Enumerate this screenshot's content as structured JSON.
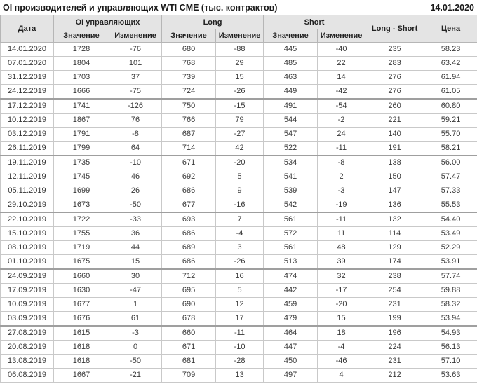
{
  "title": "OI производителей и управляющих WTI CME (тыс. контрактов)",
  "report_date": "14.01.2020",
  "colors": {
    "positive_change": "#0a9a0a",
    "negative_change": "#cc2222",
    "header_bg": "#e4e4e4",
    "grid_line": "#c9c9c9",
    "group_separator": "#9f9f9f"
  },
  "table": {
    "columns": {
      "date": "Дата",
      "groups": [
        {
          "label": "OI управляющих",
          "sub": [
            "Значение",
            "Изменение"
          ]
        },
        {
          "label": "Long",
          "sub": [
            "Значение",
            "Изменение"
          ]
        },
        {
          "label": "Short",
          "sub": [
            "Значение",
            "Изменение"
          ]
        }
      ],
      "long_short": "Long - Short",
      "price": "Цена"
    },
    "group_separator_after_rows": [
      3,
      7,
      11,
      15,
      19
    ],
    "rows": [
      {
        "date": "14.01.2020",
        "oi_value": "1728",
        "oi_change": "-76",
        "long_value": "680",
        "long_change": "-88",
        "short_value": "445",
        "short_change": "-40",
        "long_short": "235",
        "price": "58.23"
      },
      {
        "date": "07.01.2020",
        "oi_value": "1804",
        "oi_change": "101",
        "long_value": "768",
        "long_change": "29",
        "short_value": "485",
        "short_change": "22",
        "long_short": "283",
        "price": "63.42"
      },
      {
        "date": "31.12.2019",
        "oi_value": "1703",
        "oi_change": "37",
        "long_value": "739",
        "long_change": "15",
        "short_value": "463",
        "short_change": "14",
        "long_short": "276",
        "price": "61.94"
      },
      {
        "date": "24.12.2019",
        "oi_value": "1666",
        "oi_change": "-75",
        "long_value": "724",
        "long_change": "-26",
        "short_value": "449",
        "short_change": "-42",
        "long_short": "276",
        "price": "61.05"
      },
      {
        "date": "17.12.2019",
        "oi_value": "1741",
        "oi_change": "-126",
        "long_value": "750",
        "long_change": "-15",
        "short_value": "491",
        "short_change": "-54",
        "long_short": "260",
        "price": "60.80"
      },
      {
        "date": "10.12.2019",
        "oi_value": "1867",
        "oi_change": "76",
        "long_value": "766",
        "long_change": "79",
        "short_value": "544",
        "short_change": "-2",
        "long_short": "221",
        "price": "59.21"
      },
      {
        "date": "03.12.2019",
        "oi_value": "1791",
        "oi_change": "-8",
        "long_value": "687",
        "long_change": "-27",
        "short_value": "547",
        "short_change": "24",
        "long_short": "140",
        "price": "55.70"
      },
      {
        "date": "26.11.2019",
        "oi_value": "1799",
        "oi_change": "64",
        "long_value": "714",
        "long_change": "42",
        "short_value": "522",
        "short_change": "-11",
        "long_short": "191",
        "price": "58.21"
      },
      {
        "date": "19.11.2019",
        "oi_value": "1735",
        "oi_change": "-10",
        "long_value": "671",
        "long_change": "-20",
        "short_value": "534",
        "short_change": "-8",
        "long_short": "138",
        "price": "56.00"
      },
      {
        "date": "12.11.2019",
        "oi_value": "1745",
        "oi_change": "46",
        "long_value": "692",
        "long_change": "5",
        "short_value": "541",
        "short_change": "2",
        "long_short": "150",
        "price": "57.47"
      },
      {
        "date": "05.11.2019",
        "oi_value": "1699",
        "oi_change": "26",
        "long_value": "686",
        "long_change": "9",
        "short_value": "539",
        "short_change": "-3",
        "long_short": "147",
        "price": "57.33"
      },
      {
        "date": "29.10.2019",
        "oi_value": "1673",
        "oi_change": "-50",
        "long_value": "677",
        "long_change": "-16",
        "short_value": "542",
        "short_change": "-19",
        "long_short": "136",
        "price": "55.53"
      },
      {
        "date": "22.10.2019",
        "oi_value": "1722",
        "oi_change": "-33",
        "long_value": "693",
        "long_change": "7",
        "short_value": "561",
        "short_change": "-11",
        "long_short": "132",
        "price": "54.40"
      },
      {
        "date": "15.10.2019",
        "oi_value": "1755",
        "oi_change": "36",
        "long_value": "686",
        "long_change": "-4",
        "short_value": "572",
        "short_change": "11",
        "long_short": "114",
        "price": "53.49"
      },
      {
        "date": "08.10.2019",
        "oi_value": "1719",
        "oi_change": "44",
        "long_value": "689",
        "long_change": "3",
        "short_value": "561",
        "short_change": "48",
        "long_short": "129",
        "price": "52.29"
      },
      {
        "date": "01.10.2019",
        "oi_value": "1675",
        "oi_change": "15",
        "long_value": "686",
        "long_change": "-26",
        "short_value": "513",
        "short_change": "39",
        "long_short": "174",
        "price": "53.91"
      },
      {
        "date": "24.09.2019",
        "oi_value": "1660",
        "oi_change": "30",
        "long_value": "712",
        "long_change": "16",
        "short_value": "474",
        "short_change": "32",
        "long_short": "238",
        "price": "57.74"
      },
      {
        "date": "17.09.2019",
        "oi_value": "1630",
        "oi_change": "-47",
        "long_value": "695",
        "long_change": "5",
        "short_value": "442",
        "short_change": "-17",
        "long_short": "254",
        "price": "59.88"
      },
      {
        "date": "10.09.2019",
        "oi_value": "1677",
        "oi_change": "1",
        "long_value": "690",
        "long_change": "12",
        "short_value": "459",
        "short_change": "-20",
        "long_short": "231",
        "price": "58.32"
      },
      {
        "date": "03.09.2019",
        "oi_value": "1676",
        "oi_change": "61",
        "long_value": "678",
        "long_change": "17",
        "short_value": "479",
        "short_change": "15",
        "long_short": "199",
        "price": "53.94"
      },
      {
        "date": "27.08.2019",
        "oi_value": "1615",
        "oi_change": "-3",
        "long_value": "660",
        "long_change": "-11",
        "short_value": "464",
        "short_change": "18",
        "long_short": "196",
        "price": "54.93"
      },
      {
        "date": "20.08.2019",
        "oi_value": "1618",
        "oi_change": "0",
        "long_value": "671",
        "long_change": "-10",
        "short_value": "447",
        "short_change": "-4",
        "long_short": "224",
        "price": "56.13"
      },
      {
        "date": "13.08.2019",
        "oi_value": "1618",
        "oi_change": "-50",
        "long_value": "681",
        "long_change": "-28",
        "short_value": "450",
        "short_change": "-46",
        "long_short": "231",
        "price": "57.10"
      },
      {
        "date": "06.08.2019",
        "oi_value": "1667",
        "oi_change": "-21",
        "long_value": "709",
        "long_change": "13",
        "short_value": "497",
        "short_change": "4",
        "long_short": "212",
        "price": "53.63"
      }
    ]
  }
}
